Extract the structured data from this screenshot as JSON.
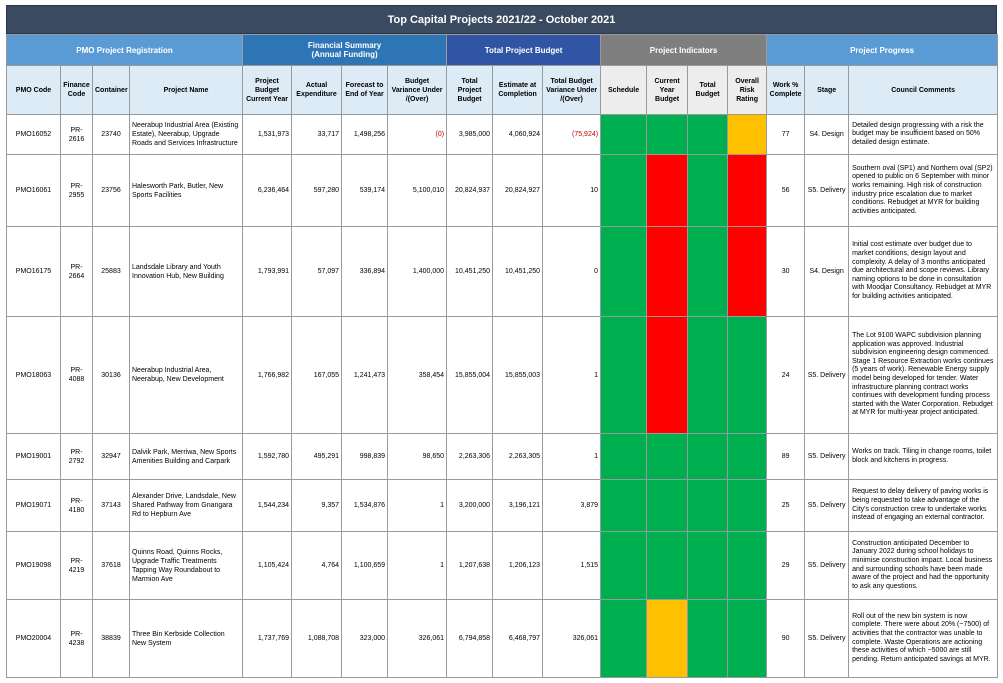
{
  "title": "Top Capital Projects 2021/22 - October 2021",
  "group_headers": {
    "pmo": "PMO Project Registration",
    "financial_line1": "Financial Summary",
    "financial_line2": "(Annual Funding)",
    "total_budget": "Total Project Budget",
    "indicators": "Project Indicators",
    "progress": "Project Progress"
  },
  "columns": {
    "pmo_code": "PMO Code",
    "finance_code": "Finance Code",
    "container": "Container",
    "project_name": "Project Name",
    "budget_current_year": "Project Budget Current Year",
    "actual_expenditure": "Actual Expenditure",
    "forecast_end_year": "Forecast to End of Year",
    "budget_variance": "Budget Variance Under /(Over)",
    "total_project_budget": "Total Project Budget",
    "estimate_completion": "Estimate at Completion",
    "total_budget_variance": "Total Budget Variance Under /(Over)",
    "schedule": "Schedule",
    "current_year_budget": "Current Year Budget",
    "total_budget": "Total Budget",
    "overall_risk": "Overall Risk Rating",
    "work_complete": "Work % Complete",
    "stage": "Stage",
    "council_comments": "Council Comments"
  },
  "colors": {
    "green": "#00b050",
    "red": "#ff0000",
    "amber": "#ffc000"
  },
  "rows": [
    {
      "pmo_code": "PMO16052",
      "finance_code": "PR-2616",
      "container": "23740",
      "project_name": "Neerabup Industrial Area (Existing Estate), Neerabup, Upgrade Roads and Services Infrastructure",
      "budget_current_year": "1,531,973",
      "actual_expenditure": "33,717",
      "forecast_end_year": "1,498,256",
      "budget_variance": "(0)",
      "total_project_budget": "3,985,000",
      "estimate_completion": "4,060,924",
      "total_budget_variance": "(75,924)",
      "schedule": "green",
      "current_year_budget": "green",
      "total_budget": "green",
      "overall_risk": "amber",
      "work_complete": "77",
      "stage": "S4. Design",
      "comment": "Detailed design progressing with a risk the budget may be insufficient based on 50% detailed design estimate."
    },
    {
      "pmo_code": "PMO16061",
      "finance_code": "PR-2955",
      "container": "23756",
      "project_name": "Halesworth Park, Butler, New Sports Facilities",
      "budget_current_year": "6,236,464",
      "actual_expenditure": "597,280",
      "forecast_end_year": "539,174",
      "budget_variance": "5,100,010",
      "total_project_budget": "20,824,937",
      "estimate_completion": "20,824,927",
      "total_budget_variance": "10",
      "schedule": "green",
      "current_year_budget": "red",
      "total_budget": "green",
      "overall_risk": "red",
      "work_complete": "56",
      "stage": "S5. Delivery",
      "comment": "Southern oval (SP1) and Northern oval (SP2) opened to public on 6 September with minor works remaining. High risk of construction industry price escalation due to market conditions. Rebudget at MYR for building activities anticipated."
    },
    {
      "pmo_code": "PMO16175",
      "finance_code": "PR-2664",
      "container": "25883",
      "project_name": "Landsdale Library and Youth Innovation Hub, New Building",
      "budget_current_year": "1,793,991",
      "actual_expenditure": "57,097",
      "forecast_end_year": "336,894",
      "budget_variance": "1,400,000",
      "total_project_budget": "10,451,250",
      "estimate_completion": "10,451,250",
      "total_budget_variance": "0",
      "schedule": "green",
      "current_year_budget": "red",
      "total_budget": "green",
      "overall_risk": "red",
      "work_complete": "30",
      "stage": "S4. Design",
      "comment": "Initial cost estimate over budget due to market conditions, design layout and complexity. A delay of 3 months anticipated due architectural and scope reviews. Library naming options to be done in consultation with Moodjar Consultancy. Rebudget at MYR for building activities anticipated."
    },
    {
      "pmo_code": "PMO18063",
      "finance_code": "PR-4088",
      "container": "30136",
      "project_name": "Neerabup Industrial Area, Neerabup, New Development",
      "budget_current_year": "1,766,982",
      "actual_expenditure": "167,055",
      "forecast_end_year": "1,241,473",
      "budget_variance": "358,454",
      "total_project_budget": "15,855,004",
      "estimate_completion": "15,855,003",
      "total_budget_variance": "1",
      "schedule": "green",
      "current_year_budget": "red",
      "total_budget": "green",
      "overall_risk": "green",
      "work_complete": "24",
      "stage": "S5. Delivery",
      "comment": "The Lot 9100 WAPC subdivision planning application was approved. Industrial subdivision engineering design commenced. Stage 1 Resource Extraction works continues (5 years of work). Renewable Energy supply model being developed for tender. Water infrastructure planning contract works continues with development funding process started with the Water Corporation. Rebudget at MYR for multi-year project anticipated."
    },
    {
      "pmo_code": "PMO19001",
      "finance_code": "PR-2792",
      "container": "32947",
      "project_name": "Dalvik Park, Merriwa, New Sports Amenities Building and Carpark",
      "budget_current_year": "1,592,780",
      "actual_expenditure": "495,291",
      "forecast_end_year": "998,839",
      "budget_variance": "98,650",
      "total_project_budget": "2,263,306",
      "estimate_completion": "2,263,305",
      "total_budget_variance": "1",
      "schedule": "green",
      "current_year_budget": "green",
      "total_budget": "green",
      "overall_risk": "green",
      "work_complete": "89",
      "stage": "S5. Delivery",
      "comment": "Works on track. Tiling in change rooms, toilet block and kitchens in progress."
    },
    {
      "pmo_code": "PMO19071",
      "finance_code": "PR-4180",
      "container": "37143",
      "project_name": "Alexander Drive, Landsdale, New Shared Pathway from Gnangara Rd to Hepburn Ave",
      "budget_current_year": "1,544,234",
      "actual_expenditure": "9,357",
      "forecast_end_year": "1,534,876",
      "budget_variance": "1",
      "total_project_budget": "3,200,000",
      "estimate_completion": "3,196,121",
      "total_budget_variance": "3,879",
      "schedule": "green",
      "current_year_budget": "green",
      "total_budget": "green",
      "overall_risk": "green",
      "work_complete": "25",
      "stage": "S5. Delivery",
      "comment": "Request to delay delivery of paving works is being requested to take advantage of the City's construction crew to undertake works instead of engaging an external contractor."
    },
    {
      "pmo_code": "PMO19098",
      "finance_code": "PR-4219",
      "container": "37618",
      "project_name": "Quinns Road, Quinns Rocks, Upgrade Traffic Treatments Tapping Way Roundabout to Marmion Ave",
      "budget_current_year": "1,105,424",
      "actual_expenditure": "4,764",
      "forecast_end_year": "1,100,659",
      "budget_variance": "1",
      "total_project_budget": "1,207,638",
      "estimate_completion": "1,206,123",
      "total_budget_variance": "1,515",
      "schedule": "green",
      "current_year_budget": "green",
      "total_budget": "green",
      "overall_risk": "green",
      "work_complete": "29",
      "stage": "S5. Delivery",
      "comment": "Construction anticipated December to January 2022 during school holidays to minimise construction impact. Local business and surrounding schools have been made aware of the project and had the opportunity to ask any questions."
    },
    {
      "pmo_code": "PMO20004",
      "finance_code": "PR-4238",
      "container": "38839",
      "project_name": "Three Bin Kerbside Collection New System",
      "budget_current_year": "1,737,769",
      "actual_expenditure": "1,088,708",
      "forecast_end_year": "323,000",
      "budget_variance": "326,061",
      "total_project_budget": "6,794,858",
      "estimate_completion": "6,468,797",
      "total_budget_variance": "326,061",
      "schedule": "green",
      "current_year_budget": "amber",
      "total_budget": "green",
      "overall_risk": "green",
      "work_complete": "90",
      "stage": "S5. Delivery",
      "comment": "Roll out of the new bin system is now complete. There were about 20% (~7500) of activities that the contractor was unable to complete. Waste Operations are actioning these activities of which ~5000 are still pending. Return anticipated savings at MYR."
    }
  ]
}
